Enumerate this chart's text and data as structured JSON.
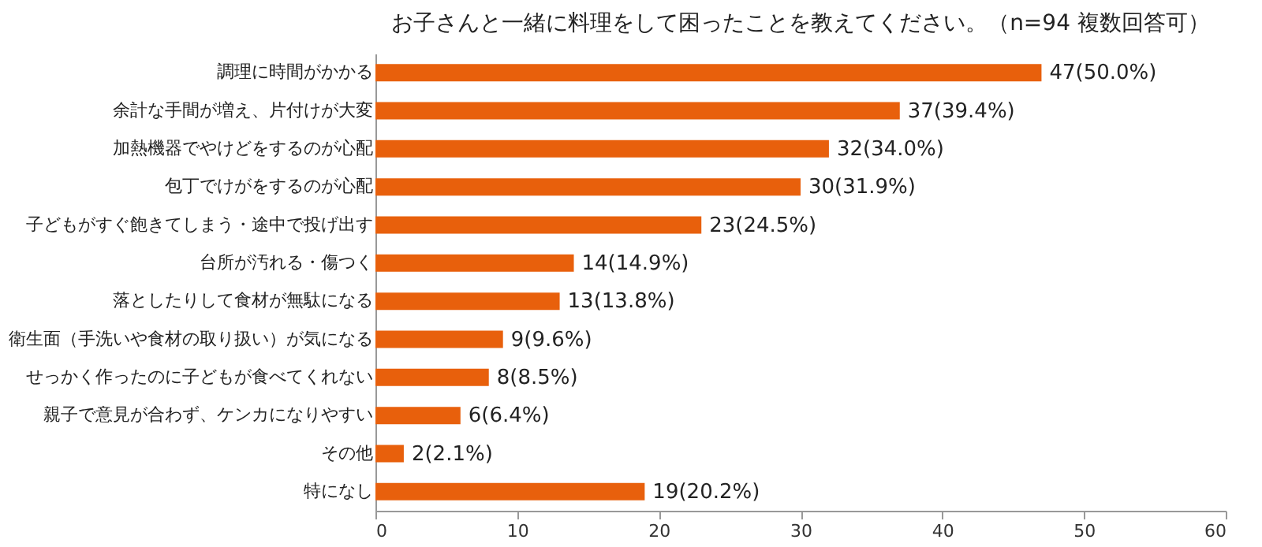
{
  "chart_data": {
    "type": "bar",
    "orientation": "horizontal",
    "title": "お子さんと一緒に料理をして困ったことを教えてください。（n=94  複数回答可）",
    "categories": [
      "調理に時間がかかる",
      "余計な手間が増え、片付けが大変",
      "加熱機器でやけどをするのが心配",
      "包丁でけがをするのが心配",
      "子どもがすぐ飽きてしまう・途中で投げ出す",
      "台所が汚れる・傷つく",
      "落としたりして食材が無駄になる",
      "衛生面（手洗いや食材の取り扱い）が気になる",
      "せっかく作ったのに子どもが食べてくれない",
      "親子で意見が合わず、ケンカになりやすい",
      "その他",
      "特になし"
    ],
    "values": [
      47,
      37,
      32,
      30,
      23,
      14,
      13,
      9,
      8,
      6,
      2,
      19
    ],
    "value_labels": [
      "47(50.0%)",
      "37(39.4%)",
      "32(34.0%)",
      "30(31.9%)",
      "23(24.5%)",
      "14(14.9%)",
      "13(13.8%)",
      "9(9.6%)",
      "8(8.5%)",
      "6(6.4%)",
      "2(2.1%)",
      "19(20.2%)"
    ],
    "color": "#e8600c",
    "xlim": [
      0,
      60
    ],
    "xticks": [
      0,
      10,
      20,
      30,
      40,
      50,
      60
    ],
    "grid": false
  }
}
